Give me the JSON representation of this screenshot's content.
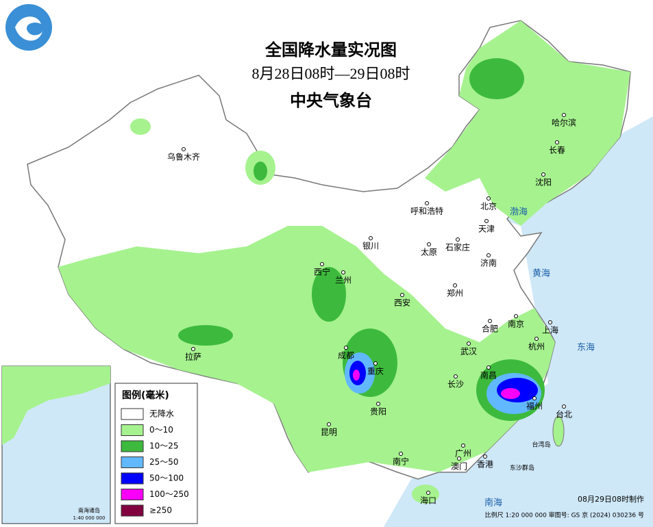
{
  "header": {
    "title": "全国降水量实况图",
    "subtitle": "8月28日08时—29日08时",
    "agency": "中央气象台"
  },
  "legend": {
    "title": "图例(毫米)",
    "items": [
      {
        "label": "无降水",
        "color": "#ffffff"
      },
      {
        "label": "0～10",
        "color": "#a6f28f"
      },
      {
        "label": "10～25",
        "color": "#3dba3d"
      },
      {
        "label": "25～50",
        "color": "#61b8ff"
      },
      {
        "label": "50～100",
        "color": "#0000ff"
      },
      {
        "label": "100～250",
        "color": "#fa00fa"
      },
      {
        "label": "≥250",
        "color": "#800040"
      }
    ]
  },
  "cities": [
    "乌鲁木齐",
    "哈尔滨",
    "长春",
    "沈阳",
    "北京",
    "天津",
    "呼和浩特",
    "银川",
    "太原",
    "石家庄",
    "济南",
    "西宁",
    "兰州",
    "西安",
    "郑州",
    "合肥",
    "南京",
    "上海",
    "杭州",
    "成都",
    "重庆",
    "武汉",
    "长沙",
    "南昌",
    "福州",
    "台北",
    "拉萨",
    "贵阳",
    "昆明",
    "南宁",
    "广州",
    "澳门",
    "香港",
    "海口"
  ],
  "seas": [
    "渤海",
    "黄海",
    "东海",
    "南海"
  ],
  "islands": [
    "台湾岛",
    "东沙群岛"
  ],
  "inset": {
    "label": "南海诸岛",
    "scale": "1:40 000 000"
  },
  "footer": {
    "made": "08月29日08时制作",
    "scale": "比例尺 1:20 000 000 审图号: GS 京 (2024) 030236 号"
  }
}
